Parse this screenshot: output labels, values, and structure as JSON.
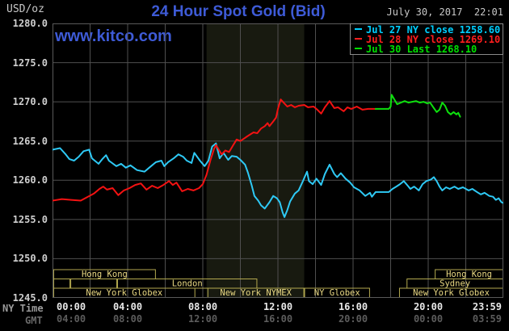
{
  "header": {
    "unit_label": "USD/oz",
    "title": "24 Hour Spot Gold (Bid)",
    "timestamp": "July 30, 2017  22:01",
    "watermark": "www.kitco.com"
  },
  "legend": [
    {
      "label": "Jul 27 NY close 1258.60",
      "color": "#00cfff"
    },
    {
      "label": "Jul 28 NY close 1269.10",
      "color": "#ff1e1e"
    },
    {
      "label": "Jul 30 Last 1268.10",
      "color": "#00e000"
    }
  ],
  "axes": {
    "y_ticks": [
      {
        "value": 1280,
        "label": "1280.0"
      },
      {
        "value": 1275,
        "label": "1275.0"
      },
      {
        "value": 1270,
        "label": "1270.0"
      },
      {
        "value": 1265,
        "label": "1265.0"
      },
      {
        "value": 1260,
        "label": "1260.0"
      },
      {
        "value": 1255,
        "label": "1255.0"
      },
      {
        "value": 1250,
        "label": "1250.0"
      },
      {
        "value": 1245,
        "label": "1245.0"
      }
    ],
    "x_row_labels": {
      "ny": "NY Time",
      "gmt": "GMT"
    },
    "x_ticks": [
      {
        "t": 0,
        "ny": "00:00",
        "gmt": "04:00"
      },
      {
        "t": 4,
        "ny": "04:00",
        "gmt": "08:00"
      },
      {
        "t": 8,
        "ny": "08:00",
        "gmt": "12:00"
      },
      {
        "t": 12,
        "ny": "12:00",
        "gmt": "16:00"
      },
      {
        "t": 16,
        "ny": "16:00",
        "gmt": "20:00"
      },
      {
        "t": 20,
        "ny": "20:00",
        "gmt": "00:00"
      },
      {
        "t": 24,
        "ny": "23:59",
        "gmt": "03:59"
      }
    ]
  },
  "sessions": {
    "text_color": "#ead983",
    "border_color": "#b3a94f",
    "rows": [
      [
        {
          "from": 0.04,
          "to": 5.5,
          "label": "Hong Kong"
        },
        {
          "from": 20.35,
          "to": 24,
          "label": "Hong Kong"
        }
      ],
      [
        {
          "from": 0.04,
          "to": 0.95,
          "label": ""
        },
        {
          "from": 0.95,
          "to": 3.44,
          "label": ""
        },
        {
          "from": 3.44,
          "to": 10.9,
          "label": "London"
        },
        {
          "from": 18.85,
          "to": 24,
          "label": "Sydney"
        }
      ],
      [
        {
          "from": 0.04,
          "to": 7.6,
          "label": "New York Globex"
        },
        {
          "from": 8.25,
          "to": 13.4,
          "label": "New York NYMEX"
        },
        {
          "from": 13.4,
          "to": 16.9,
          "label": "NY Globex"
        },
        {
          "from": 18.45,
          "to": 24,
          "label": "New York Globex"
        }
      ]
    ]
  },
  "chart_data": {
    "type": "line",
    "title": "24 Hour Spot Gold (Bid)",
    "x_unit": "hours_ny_time",
    "xlim": [
      0,
      24
    ],
    "ylim": [
      1245,
      1280
    ],
    "grid": {
      "x_step_hours": 2,
      "y_step": 5,
      "color": "#4f4f4f"
    },
    "shaded_region": {
      "from_h": 8.2,
      "to_h": 13.4,
      "color": "#181a10"
    },
    "series": [
      {
        "name": "Jul 27 NY close 1258.60",
        "color": "#2ec9f5",
        "points": [
          [
            0,
            1263.9
          ],
          [
            0.4,
            1264.1
          ],
          [
            0.7,
            1263.3
          ],
          [
            0.9,
            1262.7
          ],
          [
            1.15,
            1262.5
          ],
          [
            1.4,
            1263.0
          ],
          [
            1.65,
            1263.7
          ],
          [
            1.95,
            1263.9
          ],
          [
            2.1,
            1262.8
          ],
          [
            2.45,
            1262.1
          ],
          [
            2.65,
            1262.7
          ],
          [
            2.85,
            1263.2
          ],
          [
            3.0,
            1262.5
          ],
          [
            3.4,
            1261.8
          ],
          [
            3.65,
            1262.1
          ],
          [
            3.9,
            1261.6
          ],
          [
            4.15,
            1261.9
          ],
          [
            4.5,
            1261.3
          ],
          [
            4.9,
            1261.1
          ],
          [
            5.15,
            1261.6
          ],
          [
            5.5,
            1262.3
          ],
          [
            5.8,
            1262.5
          ],
          [
            5.95,
            1261.8
          ],
          [
            6.15,
            1262.3
          ],
          [
            6.45,
            1262.8
          ],
          [
            6.7,
            1263.3
          ],
          [
            6.95,
            1263.0
          ],
          [
            7.15,
            1262.5
          ],
          [
            7.4,
            1262.2
          ],
          [
            7.55,
            1263.5
          ],
          [
            7.85,
            1262.5
          ],
          [
            8.1,
            1261.8
          ],
          [
            8.3,
            1262.5
          ],
          [
            8.5,
            1264.3
          ],
          [
            8.7,
            1264.7
          ],
          [
            8.9,
            1262.8
          ],
          [
            9.1,
            1263.5
          ],
          [
            9.35,
            1262.6
          ],
          [
            9.55,
            1263.1
          ],
          [
            9.8,
            1263.0
          ],
          [
            10.0,
            1262.6
          ],
          [
            10.25,
            1262.0
          ],
          [
            10.4,
            1261.0
          ],
          [
            10.6,
            1259.4
          ],
          [
            10.75,
            1258.0
          ],
          [
            10.95,
            1257.4
          ],
          [
            11.1,
            1256.8
          ],
          [
            11.3,
            1256.4
          ],
          [
            11.55,
            1257.2
          ],
          [
            11.75,
            1258.0
          ],
          [
            11.95,
            1257.7
          ],
          [
            12.1,
            1257.2
          ],
          [
            12.25,
            1255.9
          ],
          [
            12.35,
            1255.3
          ],
          [
            12.5,
            1256.2
          ],
          [
            12.65,
            1257.3
          ],
          [
            12.9,
            1258.3
          ],
          [
            13.1,
            1258.7
          ],
          [
            13.35,
            1260.0
          ],
          [
            13.55,
            1261.1
          ],
          [
            13.65,
            1259.9
          ],
          [
            13.85,
            1259.5
          ],
          [
            14.05,
            1260.2
          ],
          [
            14.3,
            1259.4
          ],
          [
            14.5,
            1260.8
          ],
          [
            14.75,
            1262.0
          ],
          [
            15.0,
            1260.8
          ],
          [
            15.15,
            1260.4
          ],
          [
            15.35,
            1260.9
          ],
          [
            15.6,
            1260.2
          ],
          [
            15.85,
            1259.7
          ],
          [
            16.05,
            1259.1
          ],
          [
            16.35,
            1258.7
          ],
          [
            16.65,
            1258.0
          ],
          [
            16.9,
            1258.4
          ],
          [
            17.0,
            1257.9
          ],
          [
            17.2,
            1258.5
          ],
          [
            17.9,
            1258.5
          ],
          [
            18.1,
            1258.9
          ],
          [
            18.3,
            1259.2
          ],
          [
            18.5,
            1259.5
          ],
          [
            18.7,
            1259.9
          ],
          [
            18.95,
            1259.2
          ],
          [
            19.05,
            1258.9
          ],
          [
            19.25,
            1259.2
          ],
          [
            19.5,
            1258.7
          ],
          [
            19.7,
            1259.5
          ],
          [
            19.9,
            1259.9
          ],
          [
            20.15,
            1260.1
          ],
          [
            20.3,
            1260.4
          ],
          [
            20.45,
            1259.9
          ],
          [
            20.6,
            1259.2
          ],
          [
            20.75,
            1258.7
          ],
          [
            20.95,
            1259.1
          ],
          [
            21.15,
            1258.9
          ],
          [
            21.4,
            1259.2
          ],
          [
            21.6,
            1258.9
          ],
          [
            21.85,
            1259.1
          ],
          [
            22.15,
            1258.7
          ],
          [
            22.35,
            1258.9
          ],
          [
            22.6,
            1258.5
          ],
          [
            22.8,
            1258.2
          ],
          [
            23.0,
            1258.4
          ],
          [
            23.25,
            1258.0
          ],
          [
            23.45,
            1257.9
          ],
          [
            23.6,
            1257.5
          ],
          [
            23.75,
            1257.7
          ],
          [
            23.9,
            1257.2
          ],
          [
            24.0,
            1257.1
          ]
        ]
      },
      {
        "name": "Jul 28 NY close 1269.10",
        "color": "#f31212",
        "points": [
          [
            0,
            1257.4
          ],
          [
            0.5,
            1257.6
          ],
          [
            1.0,
            1257.5
          ],
          [
            1.5,
            1257.4
          ],
          [
            1.8,
            1257.8
          ],
          [
            2.2,
            1258.3
          ],
          [
            2.5,
            1258.9
          ],
          [
            2.7,
            1259.2
          ],
          [
            2.9,
            1258.8
          ],
          [
            3.2,
            1259.0
          ],
          [
            3.5,
            1258.1
          ],
          [
            3.8,
            1258.7
          ],
          [
            4.1,
            1259.0
          ],
          [
            4.4,
            1259.4
          ],
          [
            4.7,
            1259.6
          ],
          [
            5.0,
            1258.8
          ],
          [
            5.3,
            1259.3
          ],
          [
            5.6,
            1259.0
          ],
          [
            5.9,
            1259.4
          ],
          [
            6.2,
            1259.9
          ],
          [
            6.4,
            1259.4
          ],
          [
            6.6,
            1259.7
          ],
          [
            6.9,
            1258.6
          ],
          [
            7.2,
            1258.9
          ],
          [
            7.5,
            1258.7
          ],
          [
            7.8,
            1259.0
          ],
          [
            8.0,
            1259.5
          ],
          [
            8.2,
            1260.7
          ],
          [
            8.4,
            1262.5
          ],
          [
            8.6,
            1264.0
          ],
          [
            8.7,
            1264.5
          ],
          [
            9.0,
            1263.3
          ],
          [
            9.2,
            1263.8
          ],
          [
            9.4,
            1263.6
          ],
          [
            9.6,
            1264.4
          ],
          [
            9.8,
            1265.2
          ],
          [
            10.0,
            1265.0
          ],
          [
            10.3,
            1265.5
          ],
          [
            10.5,
            1265.8
          ],
          [
            10.7,
            1266.1
          ],
          [
            10.9,
            1266.0
          ],
          [
            11.1,
            1266.6
          ],
          [
            11.3,
            1266.9
          ],
          [
            11.45,
            1267.3
          ],
          [
            11.55,
            1266.9
          ],
          [
            11.75,
            1267.5
          ],
          [
            11.9,
            1268.0
          ],
          [
            12.0,
            1269.1
          ],
          [
            12.15,
            1270.3
          ],
          [
            12.3,
            1269.9
          ],
          [
            12.5,
            1269.4
          ],
          [
            12.7,
            1269.6
          ],
          [
            12.9,
            1269.3
          ],
          [
            13.1,
            1269.5
          ],
          [
            13.4,
            1269.6
          ],
          [
            13.6,
            1269.3
          ],
          [
            13.9,
            1269.4
          ],
          [
            14.1,
            1269.0
          ],
          [
            14.3,
            1268.5
          ],
          [
            14.5,
            1269.3
          ],
          [
            14.75,
            1270.1
          ],
          [
            15.0,
            1269.2
          ],
          [
            15.2,
            1269.3
          ],
          [
            15.5,
            1268.8
          ],
          [
            15.7,
            1269.3
          ],
          [
            15.9,
            1269.1
          ],
          [
            16.2,
            1269.4
          ],
          [
            16.5,
            1269.0
          ],
          [
            16.8,
            1269.1
          ],
          [
            17.2,
            1269.1
          ]
        ]
      },
      {
        "name": "Jul 30 Last 1268.10",
        "color": "#0ee00e",
        "points": [
          [
            17.2,
            1269.1
          ],
          [
            17.9,
            1269.1
          ],
          [
            18.0,
            1269.4
          ],
          [
            18.05,
            1270.9
          ],
          [
            18.2,
            1270.3
          ],
          [
            18.35,
            1269.7
          ],
          [
            18.55,
            1269.9
          ],
          [
            18.75,
            1270.1
          ],
          [
            18.95,
            1269.9
          ],
          [
            19.15,
            1270.0
          ],
          [
            19.35,
            1270.1
          ],
          [
            19.55,
            1269.9
          ],
          [
            19.75,
            1270.0
          ],
          [
            19.95,
            1269.8
          ],
          [
            20.1,
            1269.9
          ],
          [
            20.3,
            1269.2
          ],
          [
            20.45,
            1268.7
          ],
          [
            20.6,
            1269.0
          ],
          [
            20.75,
            1269.9
          ],
          [
            20.9,
            1269.5
          ],
          [
            21.05,
            1268.7
          ],
          [
            21.2,
            1268.4
          ],
          [
            21.35,
            1268.7
          ],
          [
            21.5,
            1268.4
          ],
          [
            21.6,
            1268.6
          ],
          [
            21.7,
            1268.1
          ]
        ]
      }
    ]
  }
}
